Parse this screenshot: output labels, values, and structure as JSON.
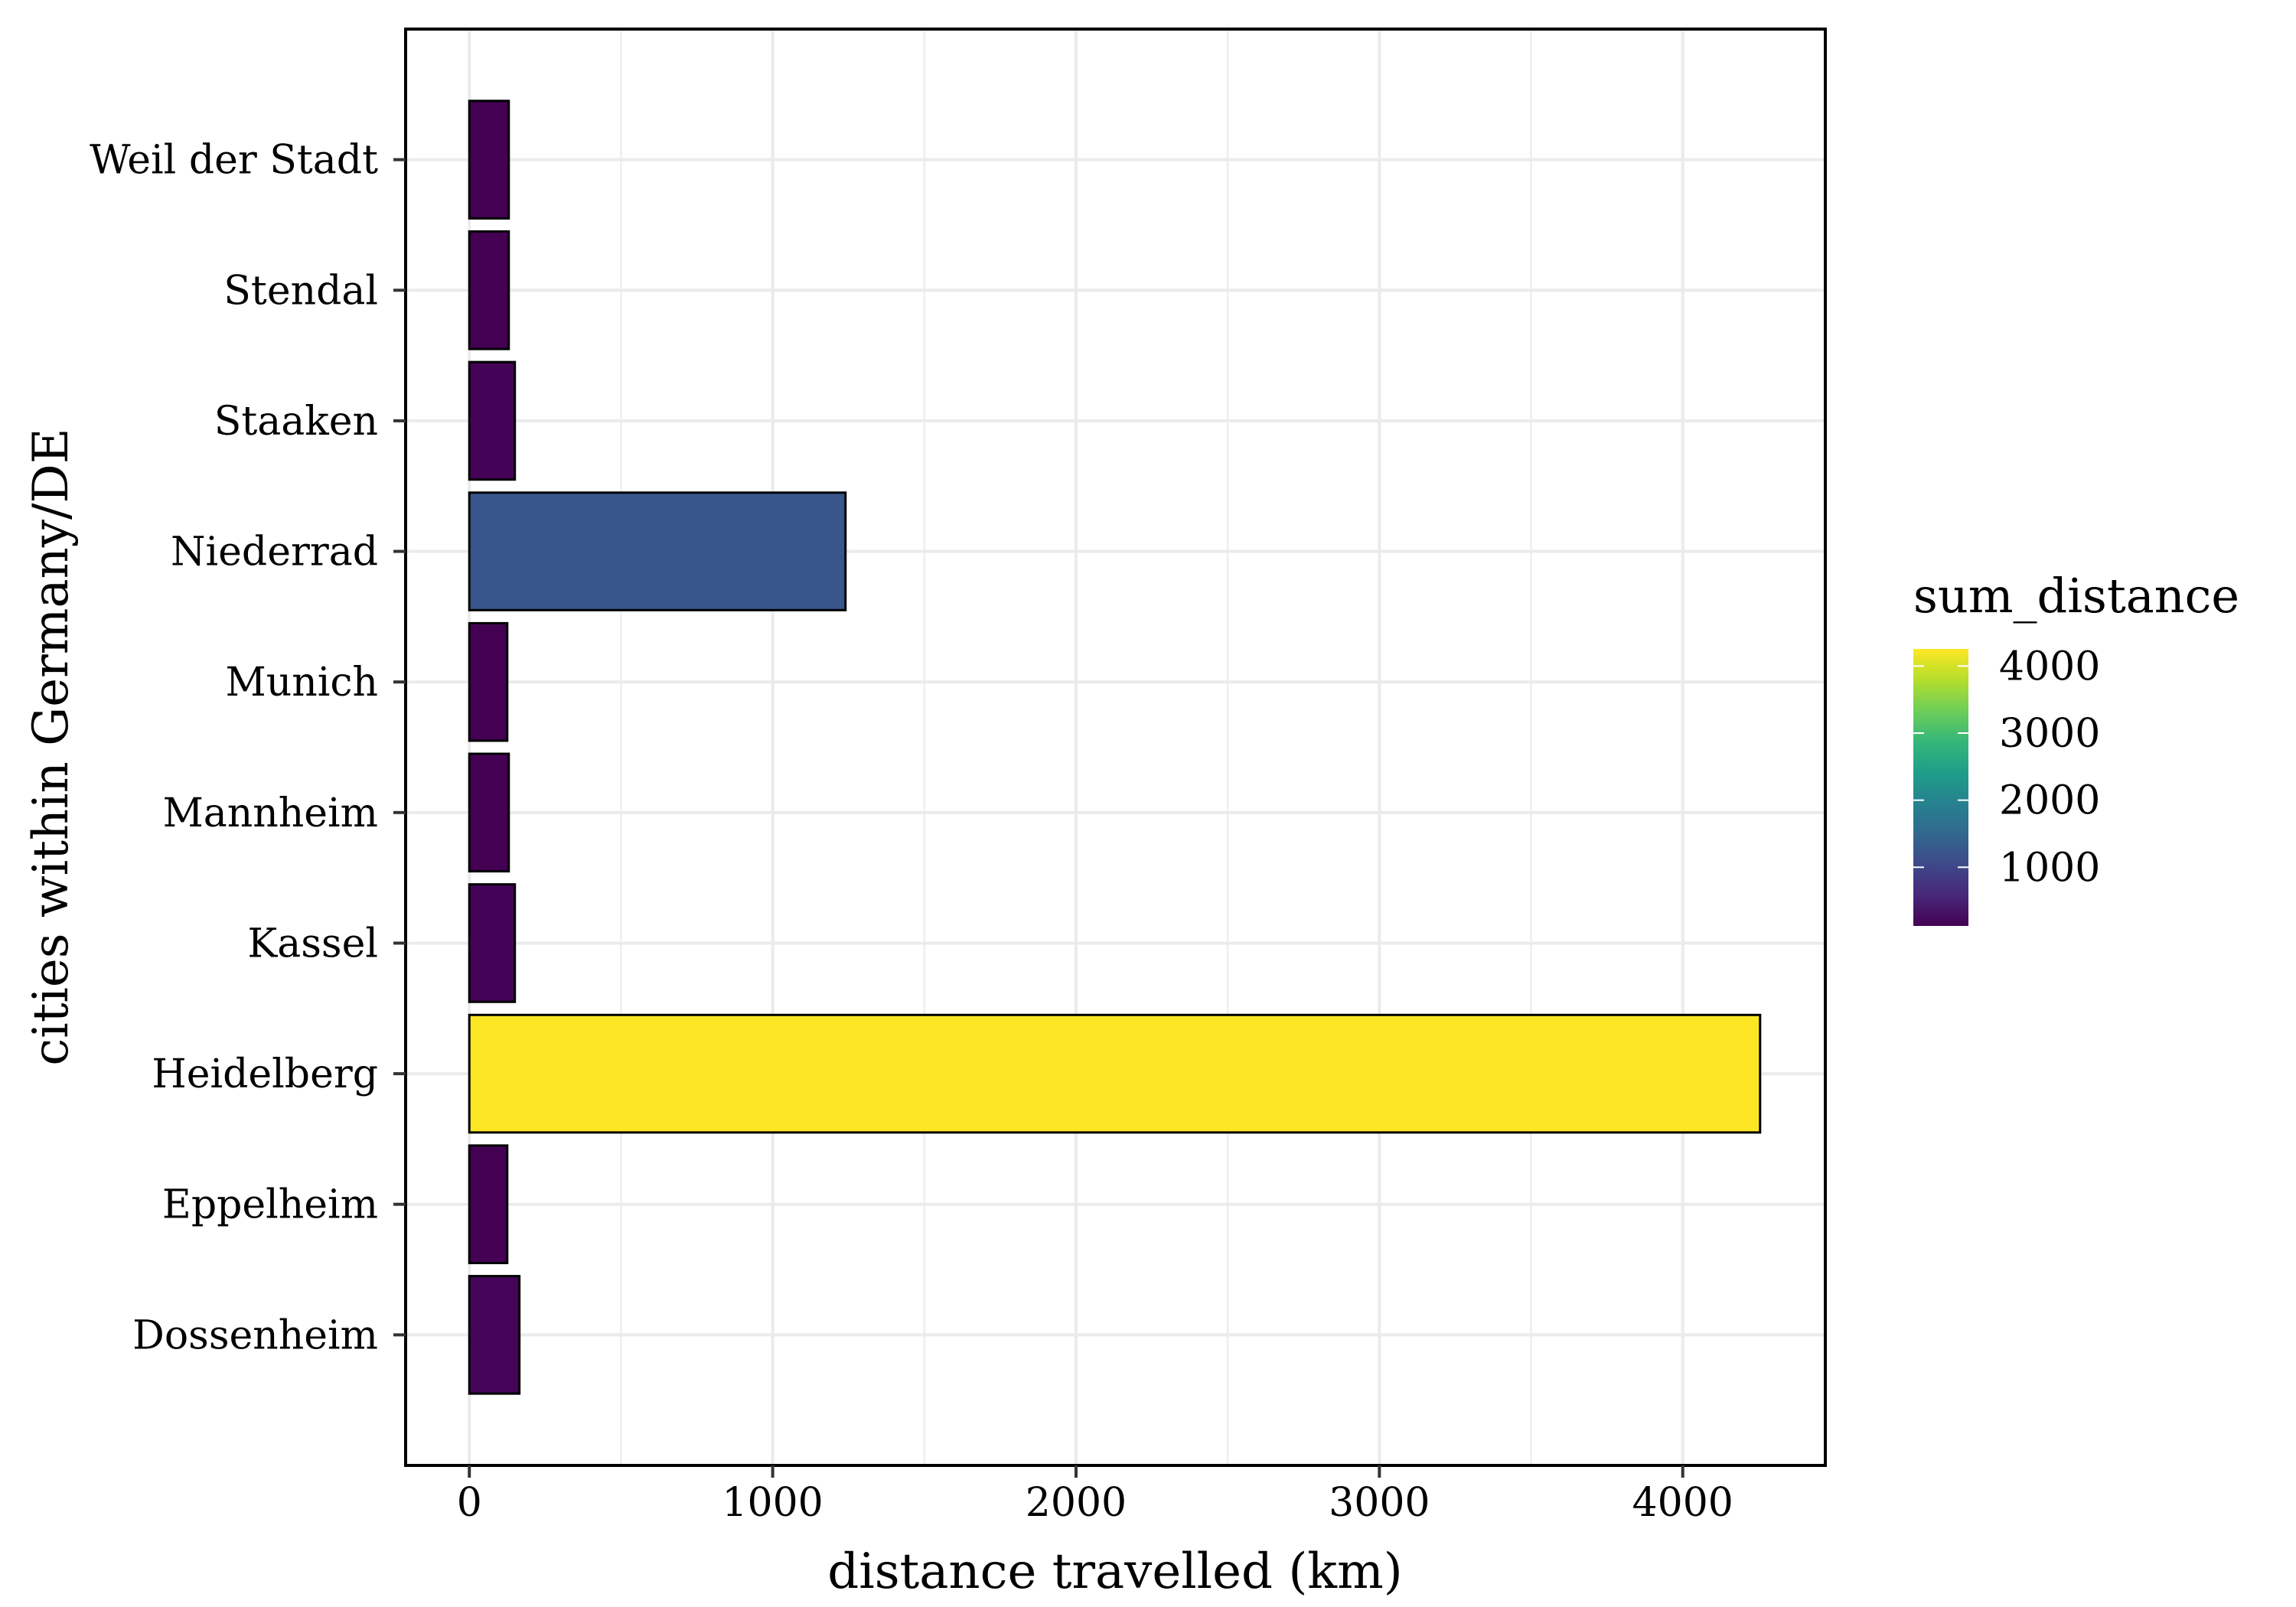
{
  "chart_data": {
    "type": "bar",
    "orientation": "horizontal",
    "xlabel": "distance travelled (km)",
    "ylabel": "cities within Germany/DE",
    "categories": [
      "Dossenheim",
      "Eppelheim",
      "Heidelberg",
      "Kassel",
      "Mannheim",
      "Munich",
      "Niederrad",
      "Staaken",
      "Stendal",
      "Weil der Stadt"
    ],
    "values": [
      165,
      125,
      4255,
      150,
      130,
      125,
      1240,
      150,
      130,
      130
    ],
    "xlim": [
      -210,
      4470
    ],
    "xticks": [
      0,
      1000,
      2000,
      3000,
      4000
    ],
    "grid": true,
    "legend": {
      "title": "sum_distance",
      "position": "right",
      "colorbar_ticks": [
        1000,
        2000,
        3000,
        4000
      ],
      "range": [
        125,
        4255
      ]
    },
    "colormap": [
      "#440154",
      "#482878",
      "#3e4989",
      "#31688e",
      "#26828e",
      "#1f9e89",
      "#35b779",
      "#6ece58",
      "#b5de2b",
      "#fde725"
    ]
  }
}
